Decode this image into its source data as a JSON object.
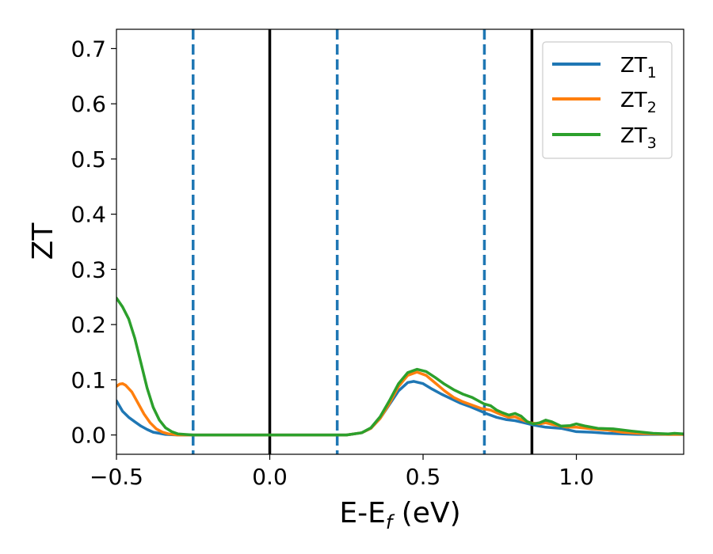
{
  "chart_data": {
    "type": "line",
    "xlabel": "E-E_f (eV)",
    "xlabel_main": "E-E",
    "xlabel_sub": "f",
    "xlabel_tail": " (eV)",
    "ylabel": "ZT",
    "xlim": [
      -0.5,
      1.35
    ],
    "ylim": [
      -0.035,
      0.735
    ],
    "xticks": [
      -0.5,
      0.0,
      0.5,
      1.0
    ],
    "xtick_labels": [
      "−0.5",
      "0.0",
      "0.5",
      "1.0"
    ],
    "yticks": [
      0.0,
      0.1,
      0.2,
      0.3,
      0.4,
      0.5,
      0.6,
      0.7
    ],
    "ytick_labels": [
      "0.0",
      "0.1",
      "0.2",
      "0.3",
      "0.4",
      "0.5",
      "0.6",
      "0.7"
    ],
    "grid": false,
    "legend_position": "top-right",
    "series": [
      {
        "name": "ZT_1",
        "label_main": "ZT",
        "label_sub": "1",
        "color": "#1f77b4",
        "points": [
          [
            -0.5,
            0.062
          ],
          [
            -0.48,
            0.043
          ],
          [
            -0.46,
            0.032
          ],
          [
            -0.44,
            0.024
          ],
          [
            -0.42,
            0.016
          ],
          [
            -0.4,
            0.01
          ],
          [
            -0.38,
            0.005
          ],
          [
            -0.36,
            0.003
          ],
          [
            -0.34,
            0.001
          ],
          [
            -0.3,
            0.0
          ],
          [
            -0.25,
            0.0
          ],
          [
            0.2,
            0.0
          ],
          [
            0.25,
            0.0
          ],
          [
            0.3,
            0.004
          ],
          [
            0.33,
            0.012
          ],
          [
            0.36,
            0.03
          ],
          [
            0.39,
            0.055
          ],
          [
            0.42,
            0.08
          ],
          [
            0.45,
            0.095
          ],
          [
            0.47,
            0.097
          ],
          [
            0.5,
            0.093
          ],
          [
            0.53,
            0.083
          ],
          [
            0.56,
            0.074
          ],
          [
            0.59,
            0.066
          ],
          [
            0.62,
            0.058
          ],
          [
            0.65,
            0.052
          ],
          [
            0.68,
            0.045
          ],
          [
            0.71,
            0.038
          ],
          [
            0.74,
            0.032
          ],
          [
            0.77,
            0.028
          ],
          [
            0.8,
            0.026
          ],
          [
            0.83,
            0.022
          ],
          [
            0.86,
            0.018
          ],
          [
            0.9,
            0.014
          ],
          [
            0.95,
            0.012
          ],
          [
            1.0,
            0.006
          ],
          [
            1.05,
            0.005
          ],
          [
            1.1,
            0.003
          ],
          [
            1.15,
            0.002
          ],
          [
            1.2,
            0.001
          ],
          [
            1.3,
            0.001
          ],
          [
            1.35,
            0.001
          ]
        ]
      },
      {
        "name": "ZT_2",
        "label_main": "ZT",
        "label_sub": "2",
        "color": "#ff7f0e",
        "points": [
          [
            -0.5,
            0.088
          ],
          [
            -0.49,
            0.092
          ],
          [
            -0.48,
            0.093
          ],
          [
            -0.47,
            0.09
          ],
          [
            -0.45,
            0.078
          ],
          [
            -0.43,
            0.058
          ],
          [
            -0.41,
            0.038
          ],
          [
            -0.39,
            0.022
          ],
          [
            -0.37,
            0.011
          ],
          [
            -0.35,
            0.005
          ],
          [
            -0.33,
            0.002
          ],
          [
            -0.3,
            0.0
          ],
          [
            -0.25,
            0.0
          ],
          [
            0.2,
            0.0
          ],
          [
            0.25,
            0.0
          ],
          [
            0.3,
            0.004
          ],
          [
            0.33,
            0.012
          ],
          [
            0.36,
            0.03
          ],
          [
            0.39,
            0.057
          ],
          [
            0.42,
            0.088
          ],
          [
            0.45,
            0.108
          ],
          [
            0.48,
            0.114
          ],
          [
            0.51,
            0.108
          ],
          [
            0.54,
            0.094
          ],
          [
            0.57,
            0.08
          ],
          [
            0.6,
            0.068
          ],
          [
            0.63,
            0.06
          ],
          [
            0.66,
            0.054
          ],
          [
            0.69,
            0.048
          ],
          [
            0.72,
            0.045
          ],
          [
            0.75,
            0.038
          ],
          [
            0.78,
            0.032
          ],
          [
            0.8,
            0.033
          ],
          [
            0.82,
            0.028
          ],
          [
            0.85,
            0.022
          ],
          [
            0.88,
            0.02
          ],
          [
            0.9,
            0.022
          ],
          [
            0.93,
            0.018
          ],
          [
            0.97,
            0.014
          ],
          [
            1.0,
            0.014
          ],
          [
            1.05,
            0.011
          ],
          [
            1.1,
            0.009
          ],
          [
            1.15,
            0.005
          ],
          [
            1.2,
            0.003
          ],
          [
            1.25,
            0.002
          ],
          [
            1.3,
            0.001
          ],
          [
            1.35,
            0.001
          ]
        ]
      },
      {
        "name": "ZT_3",
        "label_main": "ZT",
        "label_sub": "3",
        "color": "#2ca02c",
        "points": [
          [
            -0.5,
            0.248
          ],
          [
            -0.48,
            0.232
          ],
          [
            -0.46,
            0.21
          ],
          [
            -0.44,
            0.175
          ],
          [
            -0.42,
            0.13
          ],
          [
            -0.4,
            0.085
          ],
          [
            -0.38,
            0.05
          ],
          [
            -0.36,
            0.027
          ],
          [
            -0.34,
            0.013
          ],
          [
            -0.32,
            0.006
          ],
          [
            -0.3,
            0.002
          ],
          [
            -0.25,
            0.0
          ],
          [
            0.2,
            0.0
          ],
          [
            0.25,
            0.0
          ],
          [
            0.3,
            0.004
          ],
          [
            0.33,
            0.013
          ],
          [
            0.36,
            0.033
          ],
          [
            0.39,
            0.062
          ],
          [
            0.42,
            0.093
          ],
          [
            0.45,
            0.113
          ],
          [
            0.48,
            0.119
          ],
          [
            0.51,
            0.115
          ],
          [
            0.54,
            0.104
          ],
          [
            0.57,
            0.092
          ],
          [
            0.6,
            0.082
          ],
          [
            0.63,
            0.074
          ],
          [
            0.66,
            0.068
          ],
          [
            0.68,
            0.062
          ],
          [
            0.7,
            0.056
          ],
          [
            0.72,
            0.053
          ],
          [
            0.74,
            0.045
          ],
          [
            0.76,
            0.04
          ],
          [
            0.78,
            0.036
          ],
          [
            0.8,
            0.039
          ],
          [
            0.82,
            0.034
          ],
          [
            0.84,
            0.024
          ],
          [
            0.86,
            0.02
          ],
          [
            0.88,
            0.022
          ],
          [
            0.9,
            0.027
          ],
          [
            0.92,
            0.024
          ],
          [
            0.95,
            0.016
          ],
          [
            0.98,
            0.017
          ],
          [
            1.0,
            0.02
          ],
          [
            1.03,
            0.016
          ],
          [
            1.07,
            0.012
          ],
          [
            1.12,
            0.011
          ],
          [
            1.18,
            0.007
          ],
          [
            1.25,
            0.003
          ],
          [
            1.3,
            0.002
          ],
          [
            1.32,
            0.003
          ],
          [
            1.35,
            0.002
          ]
        ]
      }
    ],
    "vertical_lines": [
      {
        "x": -0.25,
        "style": "dashed",
        "color": "#1f77b4"
      },
      {
        "x": 0.0,
        "style": "solid",
        "color": "#000000"
      },
      {
        "x": 0.22,
        "style": "dashed",
        "color": "#1f77b4"
      },
      {
        "x": 0.7,
        "style": "dashed",
        "color": "#1f77b4"
      },
      {
        "x": 0.855,
        "style": "solid",
        "color": "#000000"
      }
    ]
  }
}
